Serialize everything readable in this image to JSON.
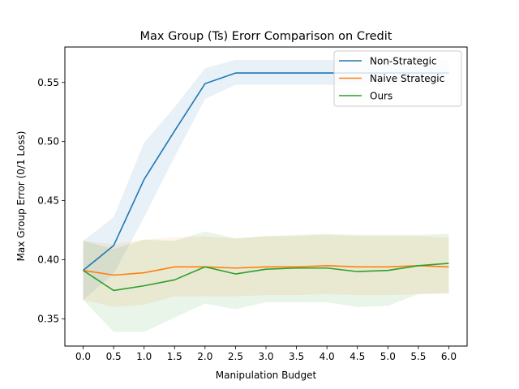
{
  "chart_data": {
    "type": "line",
    "title": "Max Group (Ts) Erorr Comparison on Credit",
    "xlabel": "Manipulation Budget",
    "ylabel": "Max Group Error (0/1 Loss)",
    "x": [
      0.0,
      0.5,
      1.0,
      1.5,
      2.0,
      2.5,
      3.0,
      3.5,
      4.0,
      4.5,
      5.0,
      5.5,
      6.0
    ],
    "x_ticks": [
      "0.0",
      "0.5",
      "1.0",
      "1.5",
      "2.0",
      "2.5",
      "3.0",
      "3.5",
      "4.0",
      "4.5",
      "5.0",
      "5.5",
      "6.0"
    ],
    "y_ticks": [
      "0.35",
      "0.40",
      "0.45",
      "0.50",
      "0.55"
    ],
    "y_tick_values": [
      0.35,
      0.4,
      0.45,
      0.5,
      0.55
    ],
    "xlim": [
      -0.3,
      6.3
    ],
    "ylim": [
      0.327,
      0.58
    ],
    "grid": false,
    "legend_position": "top-right",
    "series": [
      {
        "name": "Non-Strategic",
        "color": "#1f77b4",
        "values": [
          0.391,
          0.412,
          0.468,
          0.509,
          0.549,
          0.558,
          0.558,
          0.558,
          0.558,
          0.558,
          0.558,
          0.558,
          0.558
        ],
        "lower": [
          0.366,
          0.388,
          0.436,
          0.487,
          0.536,
          0.548,
          0.548,
          0.548,
          0.548,
          0.548,
          0.548,
          0.548,
          0.548
        ],
        "upper": [
          0.416,
          0.436,
          0.499,
          0.529,
          0.562,
          0.569,
          0.569,
          0.569,
          0.569,
          0.569,
          0.569,
          0.569,
          0.569
        ]
      },
      {
        "name": "Naive Strategic",
        "color": "#ff7f0e",
        "values": [
          0.391,
          0.387,
          0.389,
          0.394,
          0.394,
          0.393,
          0.394,
          0.394,
          0.395,
          0.394,
          0.394,
          0.395,
          0.394
        ],
        "lower": [
          0.366,
          0.36,
          0.362,
          0.369,
          0.369,
          0.369,
          0.37,
          0.37,
          0.371,
          0.37,
          0.37,
          0.371,
          0.371
        ],
        "upper": [
          0.416,
          0.413,
          0.417,
          0.419,
          0.42,
          0.418,
          0.42,
          0.42,
          0.421,
          0.42,
          0.42,
          0.42,
          0.419
        ]
      },
      {
        "name": "Ours",
        "color": "#2ca02c",
        "values": [
          0.391,
          0.374,
          0.378,
          0.383,
          0.394,
          0.388,
          0.392,
          0.393,
          0.393,
          0.39,
          0.391,
          0.395,
          0.397
        ],
        "lower": [
          0.366,
          0.339,
          0.339,
          0.351,
          0.363,
          0.358,
          0.364,
          0.364,
          0.364,
          0.36,
          0.361,
          0.371,
          0.372
        ],
        "upper": [
          0.416,
          0.409,
          0.417,
          0.416,
          0.424,
          0.418,
          0.42,
          0.421,
          0.422,
          0.421,
          0.421,
          0.421,
          0.422
        ]
      }
    ]
  }
}
